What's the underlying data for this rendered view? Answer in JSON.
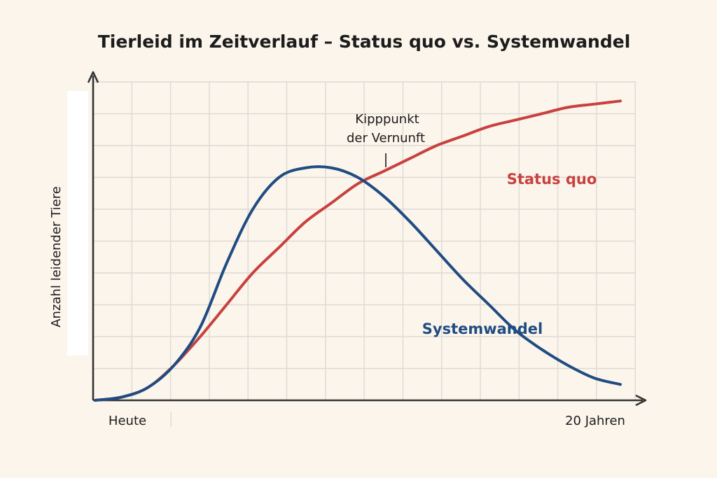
{
  "chart_data": {
    "type": "line",
    "title": "Tierleid im Zeitverlauf – Status quo vs. Systemwandel",
    "xlabel": "",
    "ylabel": "Anzahl leidender Tiere",
    "x_tick_labels": [
      "Heute",
      "20 Jahren"
    ],
    "xlim": [
      0,
      20
    ],
    "ylim": [
      0,
      100
    ],
    "grid": true,
    "colors": {
      "status_quo": "#c8413f",
      "systemwandel": "#1f4c82",
      "axis": "#333333",
      "grid": "#dedad3"
    },
    "series": [
      {
        "name": "Status quo",
        "color": "#c8413f",
        "x": [
          0,
          1,
          2,
          3,
          4,
          5,
          6,
          7,
          8,
          9,
          10,
          11,
          12,
          13,
          14,
          15,
          16,
          17,
          18,
          19,
          20
        ],
        "y": [
          0,
          1,
          4,
          11,
          20,
          30,
          40,
          48,
          56,
          62,
          68,
          72,
          76,
          80,
          83,
          86,
          88,
          90,
          92,
          93,
          94
        ]
      },
      {
        "name": "Systemwandel",
        "color": "#1f4c82",
        "x": [
          0,
          1,
          2,
          3,
          4,
          5,
          6,
          7,
          8,
          9,
          10,
          11,
          12,
          13,
          14,
          15,
          16,
          17,
          18,
          19,
          20
        ],
        "y": [
          0,
          1,
          4,
          11,
          23,
          43,
          60,
          70,
          73,
          73,
          70,
          64,
          56,
          47,
          38,
          30,
          22,
          16,
          11,
          7,
          5
        ]
      }
    ],
    "annotations": [
      {
        "lines": [
          "Kipppunkt",
          "der Vernunft"
        ],
        "x": 11.2,
        "y": 72
      }
    ]
  }
}
